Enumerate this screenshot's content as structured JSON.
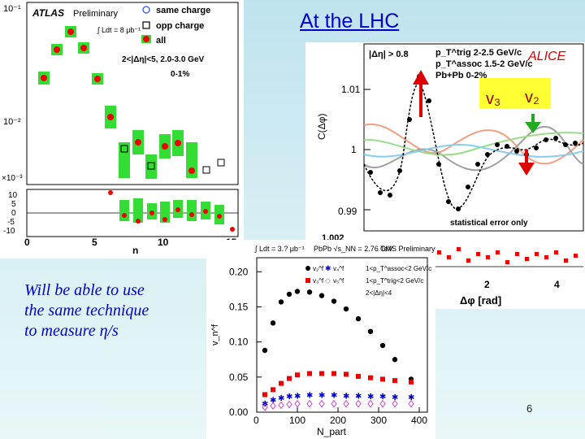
{
  "slide": {
    "title": "At the LHC",
    "caption_line1": "Will be able to use",
    "caption_line2": "the same technique",
    "caption_line3": "to measure η/s",
    "page_number": "6"
  },
  "atlas": {
    "brand": "ATLAS",
    "status": "Preliminary",
    "lumi": "∫ Ldt = 8 μb⁻¹",
    "cuts": "2<|Δη|<5, 2.0-3.0 GeV",
    "centrality": "0-1%",
    "legend": [
      "same charge",
      "opp charge",
      "all"
    ],
    "y_ticks_top": [
      "10⁻¹",
      "10⁻²",
      "10⁻³"
    ],
    "y_ticks_bottom": [
      "10",
      "5",
      "0",
      "-5",
      "-10"
    ],
    "scale_factor": "×10⁻³",
    "x_ticks": [
      "0",
      "5",
      "10",
      "15"
    ],
    "x_label": "n",
    "colors": {
      "same": "#3355ff",
      "opp": "#000000",
      "all": "#ee0000",
      "band": "#33dd33"
    }
  },
  "alice": {
    "brand": "ALICE",
    "cut_eta": "|Δη| > 0.8",
    "cut_trig": "p_T^trig 2-2.5 GeV/c",
    "cut_assoc": "p_T^assoc 1.5-2 GeV/c",
    "system": "Pb+Pb 0-2%",
    "label_v3": "v₃",
    "label_v2": "v₂",
    "note": "statistical error only",
    "y_label": "C(Δφ)",
    "y_ticks": [
      "1.01",
      "1",
      "0.99"
    ],
    "bottom_tick": "1.002",
    "x_ticks": [
      "2",
      "4"
    ],
    "x_label": "Δφ [rad]",
    "colors": {
      "highlight": "#ffff33",
      "v3_arrow": "#dd0000",
      "v2_arrow": "#22aa22"
    }
  },
  "cms": {
    "lumi": "∫ Ldt = 3.? μb⁻¹",
    "system": "PbPb √s_NN = 2.76 TeV",
    "status": "CMS Preliminary",
    "y_label": "v_n^f",
    "x_label": "N_part",
    "legend_markers": [
      "v₂^f",
      "v₃^f",
      "v₄^f",
      "v₅^f"
    ],
    "cut_assoc": "1<p_T^assoc<2 GeV/c",
    "cut_trig": "1<p_T^trig<2 GeV/c",
    "cut_eta": "2<|Δη|<4",
    "colors": {
      "v2": "#000000",
      "v3": "#ee0000",
      "v4": "#0000cc",
      "v5": "#cc44cc"
    }
  },
  "chart_data": [
    {
      "type": "scatter",
      "title": "",
      "xlabel": "N_part",
      "ylabel": "v_n^f",
      "xlim": [
        0,
        420
      ],
      "ylim": [
        0,
        0.22
      ],
      "x_ticks": [
        0,
        100,
        200,
        300,
        400
      ],
      "y_ticks": [
        0.0,
        0.05,
        0.1,
        0.15,
        0.2
      ],
      "y_tick_labels": [
        "0.00",
        "0.05",
        "0.10",
        "0.15",
        "0.20"
      ],
      "series": [
        {
          "name": "v₂^f",
          "marker": "circle",
          "x": [
            20,
            40,
            60,
            80,
            100,
            130,
            160,
            190,
            220,
            250,
            280,
            310,
            340,
            380
          ],
          "y": [
            0.088,
            0.127,
            0.157,
            0.168,
            0.172,
            0.171,
            0.166,
            0.158,
            0.147,
            0.133,
            0.115,
            0.095,
            0.075,
            0.047
          ]
        },
        {
          "name": "v₃^f",
          "marker": "square",
          "x": [
            20,
            40,
            60,
            80,
            100,
            130,
            160,
            190,
            220,
            250,
            280,
            310,
            340,
            380
          ],
          "y": [
            0.025,
            0.032,
            0.041,
            0.048,
            0.053,
            0.055,
            0.055,
            0.055,
            0.054,
            0.051,
            0.049,
            0.047,
            0.045,
            0.043
          ]
        },
        {
          "name": "v₄^f",
          "marker": "star",
          "x": [
            20,
            40,
            60,
            80,
            100,
            130,
            160,
            190,
            220,
            250,
            280,
            310,
            340,
            380
          ],
          "y": [
            0.013,
            0.018,
            0.021,
            0.023,
            0.024,
            0.025,
            0.025,
            0.025,
            0.024,
            0.024,
            0.023,
            0.023,
            0.022,
            0.022
          ]
        },
        {
          "name": "v₅^f",
          "marker": "diamond",
          "x": [
            20,
            40,
            60,
            80,
            100,
            130,
            160,
            190,
            220,
            250,
            280,
            310,
            340,
            380
          ],
          "y": [
            0.007,
            0.009,
            0.01,
            0.011,
            0.012,
            0.012,
            0.012,
            0.012,
            0.012,
            0.012,
            0.012,
            0.012,
            0.012,
            0.012
          ]
        }
      ]
    }
  ]
}
